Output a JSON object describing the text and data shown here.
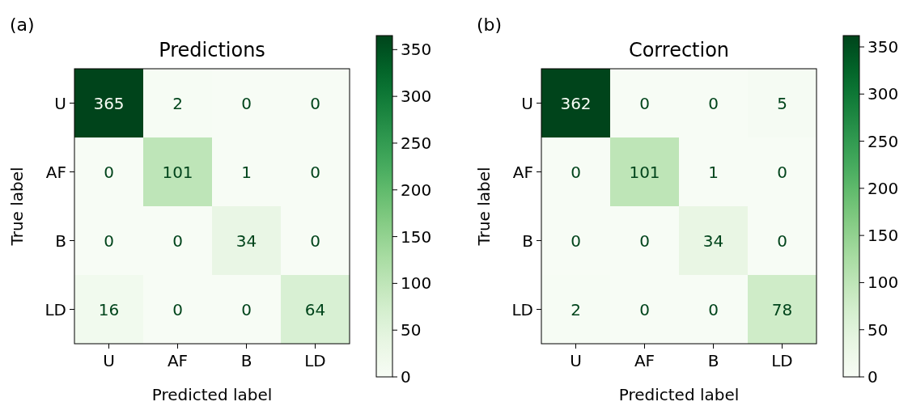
{
  "chart_data": [
    {
      "type": "heatmap",
      "title": "Predictions",
      "xlabel": "Predicted label",
      "ylabel": "True label",
      "annotations": [
        "(a)"
      ],
      "categories": [
        "U",
        "AF",
        "B",
        "LD"
      ],
      "y_categories": [
        "U",
        "AF",
        "B",
        "LD"
      ],
      "cells": [
        [
          365,
          2,
          0,
          0
        ],
        [
          0,
          101,
          1,
          0
        ],
        [
          0,
          0,
          34,
          0
        ],
        [
          16,
          0,
          0,
          64
        ]
      ],
      "data_labels": true,
      "clim": [
        0,
        365
      ],
      "cticks": [
        0,
        50,
        100,
        150,
        200,
        250,
        300,
        350
      ]
    },
    {
      "type": "heatmap",
      "title": "Correction",
      "xlabel": "Predicted label",
      "ylabel": "True label",
      "annotations": [
        "(b)"
      ],
      "categories": [
        "U",
        "AF",
        "B",
        "LD"
      ],
      "y_categories": [
        "U",
        "AF",
        "B",
        "LD"
      ],
      "cells": [
        [
          362,
          0,
          0,
          5
        ],
        [
          0,
          101,
          1,
          0
        ],
        [
          0,
          0,
          34,
          0
        ],
        [
          2,
          0,
          0,
          78
        ]
      ],
      "data_labels": true,
      "clim": [
        0,
        362
      ],
      "cticks": [
        0,
        50,
        100,
        150,
        200,
        250,
        300,
        350
      ]
    }
  ]
}
